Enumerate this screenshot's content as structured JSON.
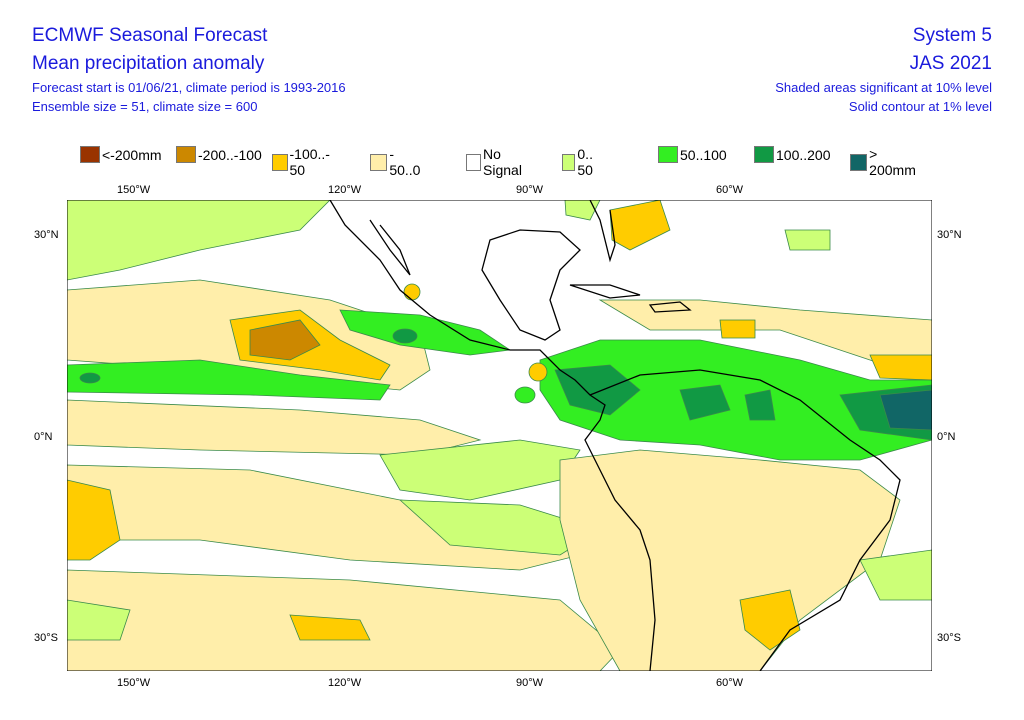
{
  "header": {
    "title": "ECMWF Seasonal Forecast",
    "subtitle": "Mean precipitation anomaly",
    "forecast_info": "Forecast start is 01/06/21, climate period is 1993-2016",
    "ensemble_info": "Ensemble size = 51, climate size = 600",
    "system": "System 5",
    "period": "JAS 2021",
    "significance_note": "Shaded areas significant at 10% level",
    "contour_note": "Solid contour at 1% level"
  },
  "legend": [
    {
      "label": "<-200mm",
      "color": "#993300"
    },
    {
      "label": "-200..-100",
      "color": "#cc8800"
    },
    {
      "label": "-100..- 50",
      "color": "#ffcc00"
    },
    {
      "label": "- 50..0",
      "color": "#ffeeaa"
    },
    {
      "label": "No Signal",
      "color": "#ffffff"
    },
    {
      "label": "0.. 50",
      "color": "#ccff77"
    },
    {
      "label": "50..100",
      "color": "#33ee22"
    },
    {
      "label": "100..200",
      "color": "#119944"
    },
    {
      "label": "> 200mm",
      "color": "#116666"
    }
  ],
  "axes": {
    "lon_labels": [
      "150°W",
      "120°W",
      "90°W",
      "60°W"
    ],
    "lat_labels": [
      "30°N",
      "0°N",
      "30°S"
    ]
  }
}
